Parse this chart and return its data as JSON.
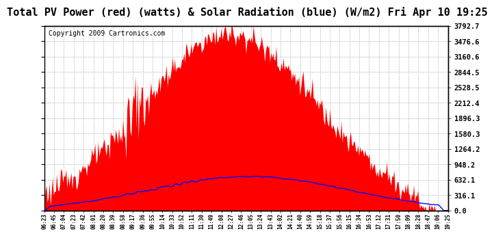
{
  "title": "Total PV Power (red) (watts) & Solar Radiation (blue) (W/m2) Fri Apr 10 19:25",
  "copyright": "Copyright 2009 Cartronics.com",
  "bg_color": "#ffffff",
  "plot_bg_color": "#ffffff",
  "grid_color": "#bbbbbb",
  "red_color": "#ff0000",
  "blue_color": "#0000ff",
  "yticks": [
    0.0,
    316.1,
    632.1,
    948.2,
    1264.2,
    1580.3,
    1896.3,
    2212.4,
    2528.5,
    2844.5,
    3160.6,
    3476.6,
    3792.7
  ],
  "ymax": 3792.7,
  "title_fontsize": 11,
  "copyright_fontsize": 7,
  "xtick_fontsize": 5.5,
  "ytick_fontsize": 7.5,
  "xtick_labels": [
    "06:23",
    "06:45",
    "07:04",
    "07:23",
    "07:42",
    "08:01",
    "08:20",
    "08:39",
    "08:58",
    "09:17",
    "09:36",
    "09:55",
    "10:14",
    "10:33",
    "10:52",
    "11:11",
    "11:30",
    "11:49",
    "12:08",
    "12:27",
    "12:46",
    "13:05",
    "13:24",
    "13:43",
    "14:02",
    "14:21",
    "14:40",
    "14:59",
    "15:18",
    "15:37",
    "15:56",
    "16:15",
    "16:34",
    "16:53",
    "17:12",
    "17:31",
    "17:50",
    "18:09",
    "18:28",
    "18:47",
    "19:06",
    "19:25"
  ]
}
